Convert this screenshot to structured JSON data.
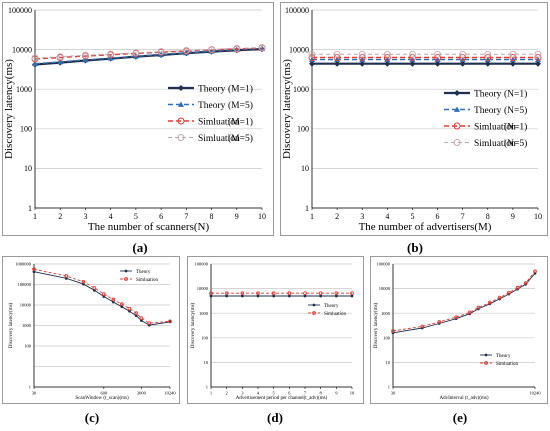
{
  "captions": [
    "(a)",
    "(b)",
    "(c)",
    "(d)",
    "(e)"
  ],
  "chart_data": [
    {
      "type": "line",
      "xlabel": "The number of scanners(N)",
      "ylabel": "Discovery latency(ms)",
      "log_y": true,
      "xlim": [
        1,
        10
      ],
      "ylim": [
        1,
        100000
      ],
      "x_ticks": [
        "1",
        "2",
        "3",
        "4",
        "5",
        "6",
        "7",
        "8",
        "9",
        "10"
      ],
      "y_ticks": [
        "1",
        "10",
        "100",
        "1000",
        "10000",
        "100000"
      ],
      "grid": true,
      "legend_position": "center-right",
      "x": [
        1,
        2,
        3,
        4,
        5,
        6,
        7,
        8,
        9,
        10
      ],
      "series": [
        {
          "name": "Theory",
          "param": "(M=1)",
          "values": [
            4200,
            4700,
            5300,
            5900,
            6600,
            7300,
            8100,
            8900,
            9600,
            10300
          ]
        },
        {
          "name": "Theory",
          "param": "(M=5)",
          "values": [
            4400,
            4900,
            5500,
            6100,
            6800,
            7500,
            8300,
            9100,
            9900,
            10700
          ]
        },
        {
          "name": "Simluation",
          "param": "(M=1)",
          "values": [
            5800,
            6300,
            6900,
            7400,
            8000,
            8600,
            9200,
            9900,
            10400,
            11000
          ]
        },
        {
          "name": "Simluation",
          "param": "(M=5)",
          "values": [
            6100,
            6600,
            7200,
            7700,
            8300,
            8900,
            9500,
            10100,
            10700,
            11300
          ]
        }
      ]
    },
    {
      "type": "line",
      "xlabel": "The number of advertisers(M)",
      "ylabel": "Discovery latency(ms)",
      "log_y": true,
      "xlim": [
        1,
        10
      ],
      "ylim": [
        1,
        100000
      ],
      "x_ticks": [
        "1",
        "2",
        "3",
        "4",
        "5",
        "6",
        "7",
        "8",
        "9",
        "10"
      ],
      "y_ticks": [
        "1",
        "10",
        "100",
        "1000",
        "10000",
        "100000"
      ],
      "grid": true,
      "legend_position": "center-right",
      "x": [
        1,
        2,
        3,
        4,
        5,
        6,
        7,
        8,
        9,
        10
      ],
      "series": [
        {
          "name": "Theory",
          "param": "(N=1)",
          "values": [
            4400,
            4400,
            4400,
            4400,
            4400,
            4400,
            4400,
            4400,
            4400,
            4400
          ]
        },
        {
          "name": "Theory",
          "param": "(N=5)",
          "values": [
            5600,
            5600,
            5600,
            5600,
            5600,
            5600,
            5600,
            5600,
            5600,
            5600
          ]
        },
        {
          "name": "Simluation",
          "param": "(N=1)",
          "values": [
            6300,
            6300,
            6300,
            6300,
            6300,
            6300,
            6300,
            6300,
            6300,
            6300
          ]
        },
        {
          "name": "Simluation",
          "param": "(N=5)",
          "values": [
            7600,
            7600,
            7600,
            7600,
            7600,
            7600,
            7600,
            7600,
            7600,
            7600
          ]
        }
      ]
    },
    {
      "type": "line",
      "xlabel": "ScanWindow (t_scan)(ms)",
      "ylabel": "Discovery latency(ms)",
      "log_y": true,
      "ylim": [
        1,
        1000000
      ],
      "x_ticks": [
        "30",
        "600",
        "3000",
        "10240"
      ],
      "y_ticks": [
        "1",
        "100",
        "1000",
        "10000",
        "100000",
        "1000000"
      ],
      "grid": true,
      "legend_position": "top-right",
      "x": [
        30,
        120,
        250,
        400,
        600,
        900,
        1300,
        1800,
        2400,
        3000,
        4200,
        10240
      ],
      "series": [
        {
          "name": "Theory",
          "values": [
            420000,
            200000,
            105000,
            52000,
            26000,
            14000,
            8200,
            5000,
            3000,
            1750,
            1050,
            1500
          ]
        },
        {
          "name": "Simluation",
          "values": [
            560000,
            260000,
            135000,
            68000,
            34000,
            18500,
            11000,
            6600,
            4000,
            2300,
            1300,
            1600
          ]
        }
      ]
    },
    {
      "type": "line",
      "xlabel": "Advertisement period per channel(t_adv)(ms)",
      "ylabel": "Discovery latency(ms)",
      "log_y": true,
      "xlim": [
        1,
        10
      ],
      "ylim": [
        1,
        100000
      ],
      "x_ticks": [
        "1",
        "2",
        "3",
        "4",
        "5",
        "6",
        "7",
        "8",
        "9",
        "10"
      ],
      "y_ticks": [
        "1",
        "10",
        "100",
        "1000",
        "10000",
        "100000"
      ],
      "grid": true,
      "legend_position": "center-right",
      "x": [
        1,
        2,
        3,
        4,
        5,
        6,
        7,
        8,
        9,
        10
      ],
      "series": [
        {
          "name": "Theory",
          "values": [
            5000,
            5000,
            5000,
            5000,
            5000,
            5000,
            5000,
            5000,
            5000,
            5000
          ]
        },
        {
          "name": "Simluation",
          "values": [
            6500,
            6500,
            6500,
            6500,
            6500,
            6500,
            6500,
            6500,
            6500,
            6500
          ]
        }
      ]
    },
    {
      "type": "line",
      "xlabel": "AdvInterval (t_adv)(ms)",
      "ylabel": "Discovery latency(ms)",
      "log_y": true,
      "ylim": [
        1,
        100000
      ],
      "x_ticks": [
        "30",
        "10240"
      ],
      "y_ticks": [
        "1",
        "10",
        "100",
        "1000",
        "10000",
        "100000"
      ],
      "grid": true,
      "legend_position": "center-right",
      "x": [
        30,
        100,
        200,
        400,
        700,
        1000,
        1600,
        2400,
        3500,
        5000,
        7000,
        10240
      ],
      "series": [
        {
          "name": "Theory",
          "values": [
            160,
            250,
            380,
            600,
            950,
            1500,
            2400,
            3800,
            6000,
            9500,
            15000,
            42000
          ]
        },
        {
          "name": "Simluation",
          "values": [
            190,
            290,
            440,
            690,
            1080,
            1700,
            2700,
            4300,
            6800,
            10800,
            17000,
            50000
          ]
        }
      ]
    }
  ],
  "colors": {
    "theory_m1": "#1f2f4f",
    "theory_m5": "#2f6db5",
    "sim_m1": "#e03c32",
    "sim_m5": "#c4a6b0",
    "grid": "#c8c8c8"
  }
}
